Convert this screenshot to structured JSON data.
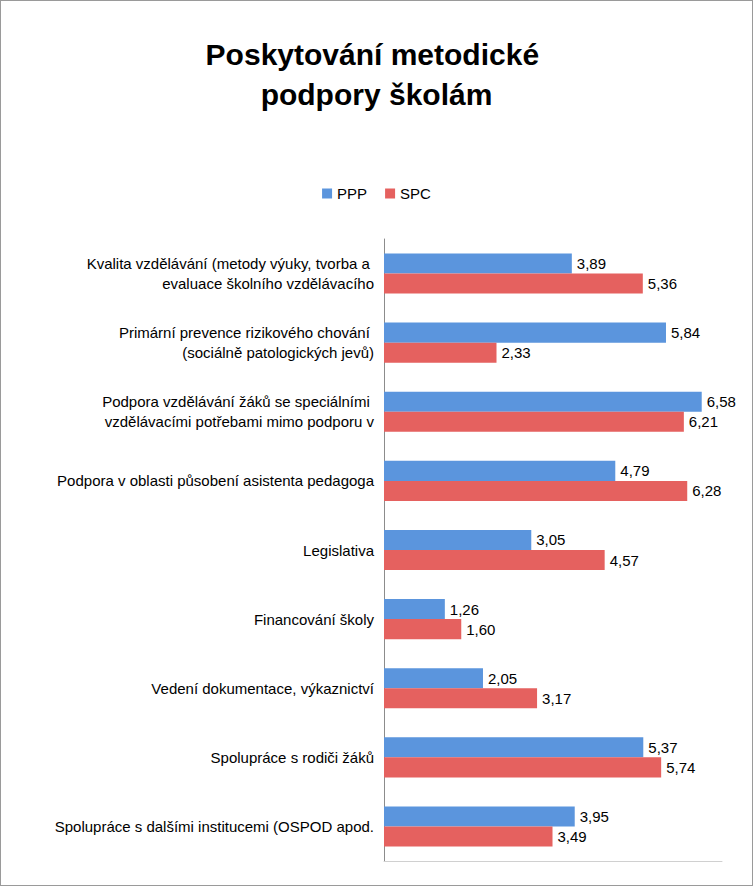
{
  "chart_data": {
    "type": "bar",
    "title": "Poskytování metodické podpory školám",
    "orientation": "horizontal",
    "categories": [
      "Kvalita vzdělávání (metody výuky, tvorba a evaluace školního vzdělávacího",
      "Primární prevence rizikového chování (sociálně patologických jevů)",
      "Podpora vzdělávání žáků se speciálními vzdělávacími potřebami mimo podporu v",
      "Podpora v oblasti působení asistenta pedagoga",
      "Legislativa",
      "Financování školy",
      "Vedení dokumentace, výkaznictví",
      "Spolupráce s rodiči žáků",
      "Spolupráce s dalšími institucemi (OSPOD apod."
    ],
    "series": [
      {
        "name": "PPP",
        "color": "#5b95dd",
        "values": [
          3.89,
          5.84,
          6.58,
          4.79,
          3.05,
          1.26,
          2.05,
          5.37,
          3.95
        ],
        "value_labels": [
          "3,89",
          "5,84",
          "6,58",
          "4,79",
          "3,05",
          "1,26",
          "2,05",
          "5,37",
          "3,95"
        ]
      },
      {
        "name": "SPC",
        "color": "#e5615f",
        "values": [
          5.36,
          2.33,
          6.21,
          6.28,
          4.57,
          1.6,
          3.17,
          5.74,
          3.49
        ],
        "value_labels": [
          "5,36",
          "2,33",
          "6,21",
          "6,28",
          "4,57",
          "1,60",
          "3,17",
          "5,74",
          "3,49"
        ]
      }
    ],
    "xlim": [
      0,
      7
    ],
    "grid": false,
    "legend": "top",
    "data_labels": true,
    "tick_labels": "y"
  }
}
